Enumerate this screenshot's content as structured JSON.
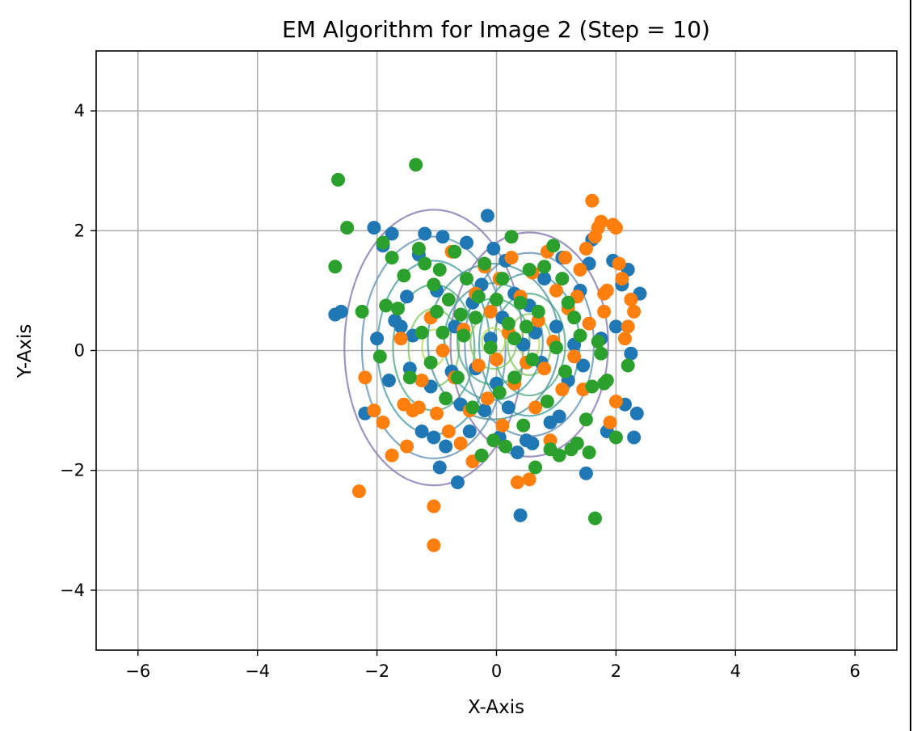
{
  "chart_data": {
    "type": "scatter",
    "title": "EM Algorithm for Image 2 (Step = 10)",
    "xlabel": "X-Axis",
    "ylabel": "Y-Axis",
    "xlim": [
      -6.7,
      6.7
    ],
    "ylim": [
      -5,
      5
    ],
    "xticks": [
      -6,
      -4,
      -2,
      0,
      2,
      4,
      6
    ],
    "yticks": [
      -4,
      -2,
      0,
      2,
      4
    ],
    "xtick_labels": [
      "−6",
      "−4",
      "−2",
      "0",
      "2",
      "4",
      "6"
    ],
    "ytick_labels": [
      "−4",
      "−2",
      "0",
      "2",
      "4"
    ],
    "grid": true,
    "series": [
      {
        "color": "#1f77b4",
        "points": [
          [
            -2.7,
            0.6
          ],
          [
            -2.6,
            0.65
          ],
          [
            -2.2,
            -1.05
          ],
          [
            -2.05,
            2.05
          ],
          [
            -1.9,
            1.75
          ],
          [
            -1.8,
            -0.5
          ],
          [
            -1.7,
            0.5
          ],
          [
            -1.75,
            1.95
          ],
          [
            -1.6,
            0.4
          ],
          [
            -1.5,
            0.9
          ],
          [
            -1.45,
            -0.3
          ],
          [
            -1.3,
            1.6
          ],
          [
            -1.25,
            -1.35
          ],
          [
            -1.2,
            1.95
          ],
          [
            -1.1,
            -0.6
          ],
          [
            -1.05,
            -1.45
          ],
          [
            -1.0,
            1.0
          ],
          [
            -0.95,
            -1.95
          ],
          [
            -0.9,
            1.9
          ],
          [
            -0.85,
            -1.6
          ],
          [
            -0.7,
            0.4
          ],
          [
            -0.65,
            -2.2
          ],
          [
            -0.6,
            -0.9
          ],
          [
            -0.5,
            1.8
          ],
          [
            -0.45,
            -1.35
          ],
          [
            -0.4,
            0.8
          ],
          [
            -0.35,
            -0.3
          ],
          [
            -0.25,
            1.1
          ],
          [
            -0.2,
            -1.0
          ],
          [
            -0.15,
            2.25
          ],
          [
            -0.1,
            0.2
          ],
          [
            -0.05,
            1.7
          ],
          [
            0.0,
            -0.55
          ],
          [
            0.05,
            -1.45
          ],
          [
            0.1,
            0.55
          ],
          [
            0.15,
            1.5
          ],
          [
            0.2,
            -0.95
          ],
          [
            0.3,
            0.95
          ],
          [
            0.35,
            -1.7
          ],
          [
            0.4,
            -2.75
          ],
          [
            0.45,
            0.1
          ],
          [
            0.5,
            -1.5
          ],
          [
            0.55,
            0.75
          ],
          [
            0.6,
            -1.55
          ],
          [
            0.65,
            0.3
          ],
          [
            0.75,
            -0.2
          ],
          [
            0.8,
            1.2
          ],
          [
            0.9,
            -1.2
          ],
          [
            1.0,
            0.4
          ],
          [
            1.05,
            -1.1
          ],
          [
            1.1,
            1.55
          ],
          [
            1.2,
            -0.5
          ],
          [
            1.3,
            0.1
          ],
          [
            1.4,
            1.0
          ],
          [
            1.45,
            -0.25
          ],
          [
            1.5,
            -2.05
          ],
          [
            1.55,
            1.45
          ],
          [
            1.6,
            1.85
          ],
          [
            1.75,
            0.2
          ],
          [
            1.85,
            -1.35
          ],
          [
            1.95,
            1.5
          ],
          [
            2.0,
            0.4
          ],
          [
            2.1,
            1.1
          ],
          [
            2.15,
            -0.9
          ],
          [
            2.2,
            1.35
          ],
          [
            2.25,
            -0.05
          ],
          [
            2.3,
            -1.45
          ],
          [
            2.35,
            -1.05
          ],
          [
            2.4,
            0.95
          ],
          [
            -2.0,
            0.2
          ],
          [
            -1.4,
            0.25
          ],
          [
            -0.75,
            -0.35
          ]
        ]
      },
      {
        "color": "#ff7f0e",
        "points": [
          [
            -2.3,
            -2.35
          ],
          [
            -2.2,
            -0.45
          ],
          [
            -2.05,
            -1.0
          ],
          [
            -1.9,
            -1.2
          ],
          [
            -1.75,
            -1.75
          ],
          [
            -1.6,
            0.2
          ],
          [
            -1.55,
            -0.9
          ],
          [
            -1.5,
            -1.6
          ],
          [
            -1.4,
            -1.0
          ],
          [
            -1.25,
            -0.5
          ],
          [
            -1.1,
            0.55
          ],
          [
            -1.05,
            -2.6
          ],
          [
            -1.05,
            -3.25
          ],
          [
            -1.0,
            -1.05
          ],
          [
            -0.9,
            0.0
          ],
          [
            -0.8,
            -1.35
          ],
          [
            -0.75,
            1.65
          ],
          [
            -0.7,
            -0.45
          ],
          [
            -0.6,
            -1.55
          ],
          [
            -0.55,
            0.35
          ],
          [
            -0.45,
            -1.0
          ],
          [
            -0.4,
            -1.85
          ],
          [
            -0.35,
            0.95
          ],
          [
            -0.3,
            -0.25
          ],
          [
            -0.2,
            1.4
          ],
          [
            -0.15,
            -0.8
          ],
          [
            -0.1,
            0.65
          ],
          [
            0.0,
            -0.15
          ],
          [
            0.05,
            1.2
          ],
          [
            0.1,
            -1.25
          ],
          [
            0.2,
            0.3
          ],
          [
            0.25,
            1.55
          ],
          [
            0.3,
            -0.55
          ],
          [
            0.35,
            -2.2
          ],
          [
            0.4,
            0.9
          ],
          [
            0.5,
            -0.2
          ],
          [
            0.55,
            -2.15
          ],
          [
            0.6,
            1.3
          ],
          [
            0.65,
            -0.95
          ],
          [
            0.7,
            0.5
          ],
          [
            0.8,
            -0.3
          ],
          [
            0.85,
            1.65
          ],
          [
            0.9,
            -1.5
          ],
          [
            0.95,
            0.15
          ],
          [
            1.0,
            1.0
          ],
          [
            1.1,
            -0.65
          ],
          [
            1.15,
            1.55
          ],
          [
            1.2,
            0.7
          ],
          [
            1.3,
            -0.1
          ],
          [
            1.35,
            0.9
          ],
          [
            1.4,
            1.35
          ],
          [
            1.45,
            -0.65
          ],
          [
            1.5,
            1.7
          ],
          [
            1.55,
            0.45
          ],
          [
            1.6,
            2.5
          ],
          [
            1.65,
            1.9
          ],
          [
            1.7,
            2.05
          ],
          [
            1.75,
            2.15
          ],
          [
            1.8,
            0.65
          ],
          [
            1.85,
            1.0
          ],
          [
            1.9,
            -1.2
          ],
          [
            1.95,
            2.1
          ],
          [
            2.0,
            -0.85
          ],
          [
            2.05,
            1.45
          ],
          [
            2.1,
            1.2
          ],
          [
            2.15,
            0.2
          ],
          [
            2.2,
            0.4
          ],
          [
            2.25,
            0.85
          ],
          [
            2.3,
            0.65
          ],
          [
            2.0,
            2.05
          ],
          [
            1.8,
            0.95
          ],
          [
            -1.3,
            -0.95
          ]
        ]
      },
      {
        "color": "#2ca02c",
        "points": [
          [
            -2.65,
            2.85
          ],
          [
            -2.7,
            1.4
          ],
          [
            -2.5,
            2.05
          ],
          [
            -2.25,
            0.65
          ],
          [
            -1.95,
            -0.1
          ],
          [
            -1.9,
            1.8
          ],
          [
            -1.85,
            0.75
          ],
          [
            -1.75,
            1.55
          ],
          [
            -1.65,
            0.7
          ],
          [
            -1.55,
            1.25
          ],
          [
            -1.45,
            -0.45
          ],
          [
            -1.35,
            3.1
          ],
          [
            -1.3,
            1.7
          ],
          [
            -1.25,
            0.3
          ],
          [
            -1.2,
            1.45
          ],
          [
            -1.1,
            -0.2
          ],
          [
            -1.05,
            1.1
          ],
          [
            -1.0,
            0.65
          ],
          [
            -0.95,
            1.35
          ],
          [
            -0.85,
            -0.8
          ],
          [
            -0.8,
            0.85
          ],
          [
            -0.7,
            1.65
          ],
          [
            -0.65,
            -0.45
          ],
          [
            -0.55,
            0.25
          ],
          [
            -0.5,
            1.2
          ],
          [
            -0.4,
            -0.95
          ],
          [
            -0.35,
            0.55
          ],
          [
            -0.25,
            -1.75
          ],
          [
            -0.2,
            1.45
          ],
          [
            -0.1,
            0.05
          ],
          [
            -0.05,
            -1.5
          ],
          [
            0.0,
            0.85
          ],
          [
            0.05,
            -0.7
          ],
          [
            0.1,
            1.2
          ],
          [
            0.15,
            -1.6
          ],
          [
            0.2,
            0.45
          ],
          [
            0.25,
            1.9
          ],
          [
            0.3,
            -0.45
          ],
          [
            0.4,
            0.8
          ],
          [
            0.45,
            -1.25
          ],
          [
            0.55,
            1.35
          ],
          [
            0.6,
            -0.15
          ],
          [
            0.65,
            -1.95
          ],
          [
            0.7,
            0.65
          ],
          [
            0.8,
            1.4
          ],
          [
            0.85,
            -0.85
          ],
          [
            0.9,
            -1.65
          ],
          [
            0.95,
            1.75
          ],
          [
            1.0,
            0.05
          ],
          [
            1.05,
            -1.75
          ],
          [
            1.1,
            1.2
          ],
          [
            1.15,
            -0.35
          ],
          [
            1.25,
            -1.65
          ],
          [
            1.3,
            0.55
          ],
          [
            1.35,
            -1.55
          ],
          [
            1.4,
            0.25
          ],
          [
            1.5,
            -1.15
          ],
          [
            1.55,
            -1.7
          ],
          [
            1.6,
            -0.6
          ],
          [
            1.65,
            -2.8
          ],
          [
            1.7,
            0.15
          ],
          [
            1.75,
            -0.05
          ],
          [
            1.8,
            -0.55
          ],
          [
            1.85,
            -0.5
          ],
          [
            2.0,
            -1.45
          ],
          [
            2.2,
            -0.25
          ],
          [
            1.2,
            0.8
          ],
          [
            -0.6,
            0.6
          ],
          [
            0.3,
            0.2
          ],
          [
            -0.9,
            0.3
          ],
          [
            0.5,
            0.4
          ],
          [
            -0.3,
            0.9
          ]
        ]
      }
    ],
    "contours": [
      {
        "center": [
          -1.05,
          0.05
        ],
        "sigma": [
          0.65,
          1.0
        ],
        "levels": [
          {
            "scale": 2.3,
            "color": "#7f6fae"
          },
          {
            "scale": 1.85,
            "color": "#5b8fb3"
          },
          {
            "scale": 1.45,
            "color": "#3f9aa2"
          },
          {
            "scale": 1.05,
            "color": "#49a67e"
          },
          {
            "scale": 0.65,
            "color": "#7bc45a"
          },
          {
            "scale": 0.3,
            "color": "#b5d84d"
          }
        ]
      },
      {
        "center": [
          0.55,
          0.1
        ],
        "sigma": [
          0.6,
          0.85
        ],
        "levels": [
          {
            "scale": 2.2,
            "color": "#7f6fae"
          },
          {
            "scale": 1.8,
            "color": "#5b8fb3"
          },
          {
            "scale": 1.4,
            "color": "#3f9aa2"
          },
          {
            "scale": 1.0,
            "color": "#49a67e"
          },
          {
            "scale": 0.6,
            "color": "#7bc45a"
          },
          {
            "scale": 0.28,
            "color": "#b5d84d"
          }
        ]
      },
      {
        "center": [
          -0.05,
          0.15
        ],
        "sigma": [
          0.55,
          0.65
        ],
        "levels": [
          {
            "scale": 2.0,
            "color": "#4a8f9b"
          },
          {
            "scale": 1.5,
            "color": "#3f9aa2"
          },
          {
            "scale": 1.1,
            "color": "#49a67e"
          },
          {
            "scale": 0.7,
            "color": "#7bc45a"
          },
          {
            "scale": 0.35,
            "color": "#b5d84d"
          }
        ]
      }
    ]
  }
}
